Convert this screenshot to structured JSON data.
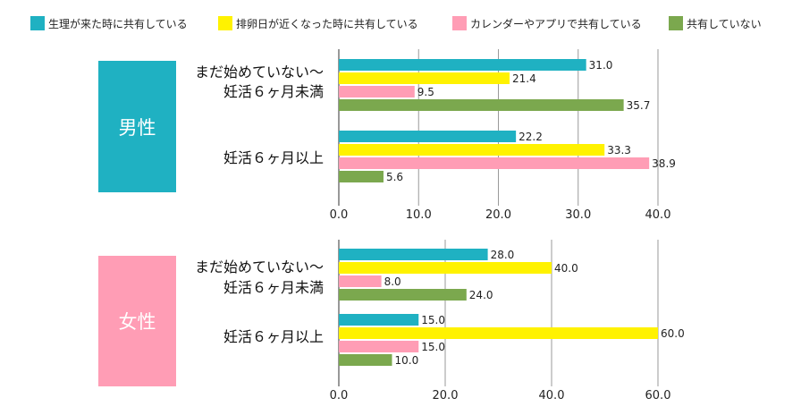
{
  "legend": [
    {
      "label": "生理が来た時に共有している",
      "color": "#1fb1c2"
    },
    {
      "label": "排卵日が近くなった時に共有している",
      "color": "#fff200"
    },
    {
      "label": "カレンダーやアプリで共有している",
      "color": "#ff9db5"
    },
    {
      "label": "共有していない",
      "color": "#7ba84e"
    }
  ],
  "groups": {
    "male": {
      "label": "男性",
      "color": "#1fb1c2"
    },
    "female": {
      "label": "女性",
      "color": "#ff9db5"
    }
  },
  "chart_data": [
    {
      "type": "bar",
      "orientation": "horizontal",
      "panel": "男性",
      "categories": [
        [
          "まだ始めていない〜",
          "妊活６ヶ月未満"
        ],
        [
          "妊活６ヶ月以上"
        ]
      ],
      "series": [
        {
          "name": "生理が来た時に共有している",
          "values": [
            31.0,
            22.2
          ]
        },
        {
          "name": "排卵日が近くなった時に共有している",
          "values": [
            21.4,
            33.3
          ]
        },
        {
          "name": "カレンダーやアプリで共有している",
          "values": [
            9.5,
            38.9
          ]
        },
        {
          "name": "共有していない",
          "values": [
            35.7,
            5.6
          ]
        }
      ],
      "xlim": [
        0,
        40
      ],
      "xticks": [
        "0.0",
        "10.0",
        "20.0",
        "30.0",
        "40.0"
      ]
    },
    {
      "type": "bar",
      "orientation": "horizontal",
      "panel": "女性",
      "categories": [
        [
          "まだ始めていない〜",
          "妊活６ヶ月未満"
        ],
        [
          "妊活６ヶ月以上"
        ]
      ],
      "series": [
        {
          "name": "生理が来た時に共有している",
          "values": [
            28.0,
            15.0
          ]
        },
        {
          "name": "排卵日が近くなった時に共有している",
          "values": [
            40.0,
            60.0
          ]
        },
        {
          "name": "カレンダーやアプリで共有している",
          "values": [
            8.0,
            15.0
          ]
        },
        {
          "name": "共有していない",
          "values": [
            24.0,
            10.0
          ]
        }
      ],
      "xlim": [
        0,
        60
      ],
      "xticks": [
        "0.0",
        "20.0",
        "40.0",
        "60.0"
      ]
    }
  ]
}
